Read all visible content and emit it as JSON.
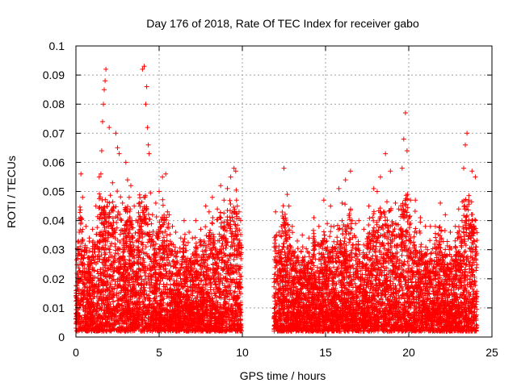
{
  "chart_data": {
    "type": "scatter",
    "title": "Day 176 of 2018, Rate Of TEC Index for receiver gabo",
    "xlabel": "GPS time / hours",
    "ylabel": "ROTI / TECUs",
    "xlim": [
      0,
      25
    ],
    "ylim": [
      0,
      0.1
    ],
    "x_ticks": [
      0,
      5,
      10,
      15,
      20,
      25
    ],
    "y_ticks": [
      0,
      0.01,
      0.02,
      0.03,
      0.04,
      0.05,
      0.06,
      0.07,
      0.08,
      0.09,
      0.1
    ],
    "x_tick_labels": [
      "0",
      "5",
      "10",
      "15",
      "20",
      "25"
    ],
    "y_tick_labels": [
      "0",
      "0.01",
      "0.02",
      "0.03",
      "0.04",
      "0.05",
      "0.06",
      "0.07",
      "0.08",
      "0.09",
      "0.1"
    ],
    "grid": true,
    "marker": "plus",
    "color": "#ff0000",
    "series": [
      {
        "name": "gabo",
        "x": [
          0.1,
          0.2,
          0.3,
          0.4,
          0.5,
          0.3,
          0.15,
          0.6,
          0.8,
          1.0,
          1.2,
          1.4,
          1.5,
          1.6,
          1.7,
          1.65,
          1.75,
          1.55,
          1.8,
          2.0,
          2.2,
          2.5,
          2.6,
          2.4,
          2.8,
          3.0,
          3.1,
          3.2,
          3.3,
          3.5,
          3.6,
          3.8,
          4.0,
          4.1,
          4.2,
          4.3,
          4.25,
          4.35,
          4.15,
          4.4,
          4.6,
          4.8,
          5.0,
          5.2,
          5.4,
          5.5,
          5.6,
          5.8,
          6.0,
          6.3,
          6.5,
          6.8,
          7.0,
          7.2,
          7.5,
          7.8,
          8.0,
          8.2,
          8.5,
          8.7,
          8.9,
          9.1,
          9.3,
          9.5,
          9.6,
          9.7,
          9.8,
          9.9,
          12.0,
          12.2,
          12.5,
          12.7,
          12.8,
          13.0,
          13.3,
          13.6,
          14.0,
          14.3,
          14.6,
          14.9,
          15.1,
          15.3,
          15.5,
          15.8,
          16.0,
          16.2,
          16.5,
          16.8,
          17.0,
          17.3,
          17.6,
          17.9,
          18.1,
          18.3,
          18.6,
          18.9,
          19.2,
          19.4,
          19.6,
          19.7,
          19.8,
          19.9,
          20.1,
          20.4,
          20.7,
          21.0,
          21.3,
          21.6,
          21.9,
          22.2,
          22.5,
          22.8,
          23.0,
          23.2,
          23.3,
          23.4,
          23.5,
          23.6,
          23.8,
          24.0
        ],
        "y": [
          0.027,
          0.036,
          0.056,
          0.048,
          0.03,
          0.041,
          0.033,
          0.038,
          0.034,
          0.037,
          0.045,
          0.055,
          0.056,
          0.074,
          0.085,
          0.08,
          0.088,
          0.064,
          0.092,
          0.072,
          0.053,
          0.065,
          0.063,
          0.07,
          0.046,
          0.06,
          0.054,
          0.048,
          0.052,
          0.045,
          0.04,
          0.046,
          0.092,
          0.093,
          0.08,
          0.072,
          0.086,
          0.066,
          0.048,
          0.063,
          0.042,
          0.046,
          0.05,
          0.055,
          0.056,
          0.043,
          0.042,
          0.038,
          0.036,
          0.034,
          0.04,
          0.036,
          0.034,
          0.04,
          0.037,
          0.045,
          0.043,
          0.048,
          0.044,
          0.052,
          0.047,
          0.051,
          0.055,
          0.058,
          0.057,
          0.045,
          0.043,
          0.04,
          0.043,
          0.036,
          0.058,
          0.049,
          0.045,
          0.038,
          0.033,
          0.035,
          0.034,
          0.041,
          0.038,
          0.047,
          0.039,
          0.045,
          0.038,
          0.051,
          0.046,
          0.054,
          0.057,
          0.039,
          0.04,
          0.037,
          0.045,
          0.051,
          0.05,
          0.055,
          0.063,
          0.057,
          0.046,
          0.044,
          0.058,
          0.068,
          0.077,
          0.064,
          0.047,
          0.047,
          0.041,
          0.038,
          0.038,
          0.038,
          0.046,
          0.042,
          0.036,
          0.038,
          0.044,
          0.04,
          0.058,
          0.066,
          0.07,
          0.047,
          0.057,
          0.055
        ]
      }
    ],
    "noise": {
      "segments": [
        [
          0.0,
          9.95
        ],
        [
          11.9,
          24.1
        ]
      ],
      "gap": [
        9.95,
        11.9
      ],
      "base_min": 0.002,
      "base_max": 0.025,
      "point_count": 9000
    }
  }
}
